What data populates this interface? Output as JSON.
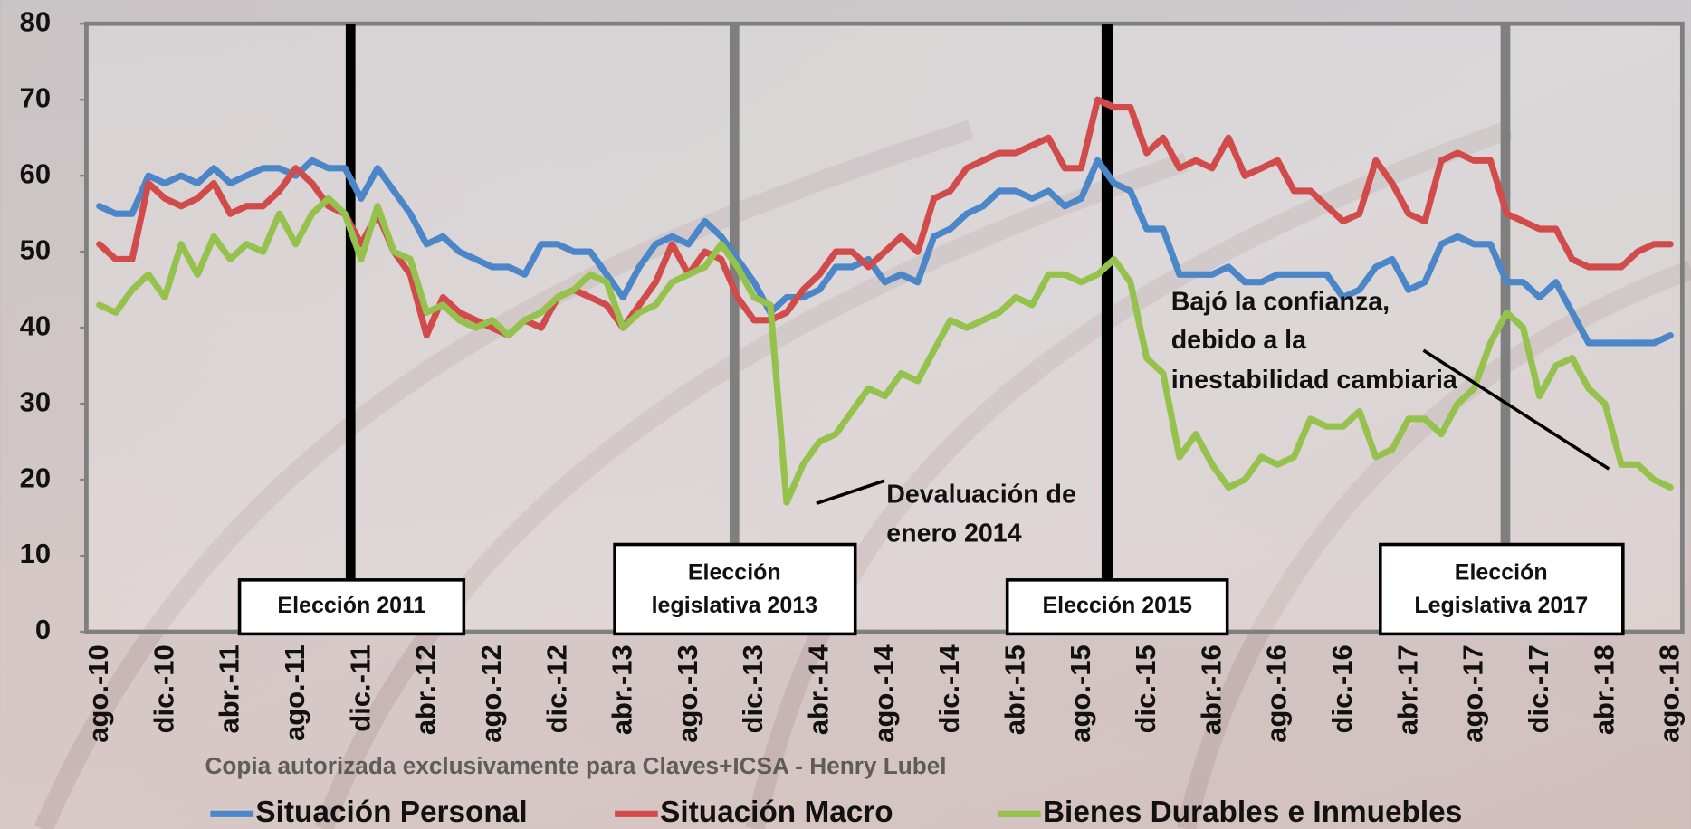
{
  "chart_data": {
    "type": "line",
    "categories": [
      "ago.-10",
      null,
      null,
      null,
      "dic.-10",
      null,
      null,
      null,
      "abr.-11",
      null,
      null,
      null,
      "ago.-11",
      null,
      null,
      null,
      "dic.-11",
      null,
      null,
      null,
      "abr.-12",
      null,
      null,
      null,
      "ago.-12",
      null,
      null,
      null,
      "dic.-12",
      null,
      null,
      null,
      "abr.-13",
      null,
      null,
      null,
      "ago.-13",
      null,
      null,
      null,
      "dic.-13",
      null,
      null,
      null,
      "abr.-14",
      null,
      null,
      null,
      "ago.-14",
      null,
      null,
      null,
      "dic.-14",
      null,
      null,
      null,
      "abr.-15",
      null,
      null,
      null,
      "ago.-15",
      null,
      null,
      null,
      "dic.-15",
      null,
      null,
      null,
      "abr.-16",
      null,
      null,
      null,
      "ago.-16",
      null,
      null,
      null,
      "dic.-16",
      null,
      null,
      null,
      "abr.-17",
      null,
      null,
      null,
      "ago.-17",
      null,
      null,
      null,
      "dic.-17",
      null,
      null,
      null,
      "abr.-18",
      null,
      null,
      null,
      "ago.-18"
    ],
    "series": [
      {
        "name": "Situación Personal",
        "color": "#4a86c8",
        "values": [
          56,
          55,
          55,
          60,
          59,
          60,
          59,
          61,
          59,
          60,
          61,
          61,
          60,
          62,
          61,
          61,
          57,
          61,
          58,
          55,
          51,
          52,
          50,
          49,
          48,
          48,
          47,
          51,
          51,
          50,
          50,
          47,
          44,
          48,
          51,
          52,
          51,
          54,
          52,
          49,
          46,
          42,
          44,
          44,
          45,
          48,
          48,
          49,
          46,
          47,
          46,
          52,
          53,
          55,
          56,
          58,
          58,
          57,
          58,
          56,
          57,
          62,
          59,
          58,
          53,
          53,
          47,
          47,
          47,
          48,
          46,
          46,
          47,
          47,
          47,
          47,
          44,
          45,
          48,
          49,
          45,
          46,
          51,
          52,
          51,
          51,
          46,
          46,
          44,
          46,
          42,
          38,
          38,
          38,
          38,
          38,
          39
        ]
      },
      {
        "name": "Situación Macro",
        "color": "#d24b4b",
        "values": [
          51,
          49,
          49,
          59,
          57,
          56,
          57,
          59,
          55,
          56,
          56,
          58,
          61,
          59,
          56,
          55,
          51,
          55,
          50,
          47,
          39,
          44,
          42,
          41,
          40,
          39,
          41,
          40,
          44,
          45,
          44,
          43,
          40,
          43,
          46,
          51,
          47,
          50,
          49,
          44,
          41,
          41,
          42,
          45,
          47,
          50,
          50,
          48,
          50,
          52,
          50,
          57,
          58,
          61,
          62,
          63,
          63,
          64,
          65,
          61,
          61,
          70,
          69,
          69,
          63,
          65,
          61,
          62,
          61,
          65,
          60,
          61,
          62,
          58,
          58,
          56,
          54,
          55,
          62,
          59,
          55,
          54,
          62,
          63,
          62,
          62,
          55,
          54,
          53,
          53,
          49,
          48,
          48,
          48,
          50,
          51,
          51
        ]
      },
      {
        "name": "Bienes Durables e Inmuebles",
        "color": "#95c24c",
        "values": [
          43,
          42,
          45,
          47,
          44,
          51,
          47,
          52,
          49,
          51,
          50,
          55,
          51,
          55,
          57,
          55,
          49,
          56,
          50,
          49,
          42,
          43,
          41,
          40,
          41,
          39,
          41,
          42,
          44,
          45,
          47,
          46,
          40,
          42,
          43,
          46,
          47,
          48,
          51,
          48,
          44,
          43,
          17,
          22,
          25,
          26,
          29,
          32,
          31,
          34,
          33,
          37,
          41,
          40,
          41,
          42,
          44,
          43,
          47,
          47,
          46,
          47,
          49,
          46,
          36,
          34,
          23,
          26,
          22,
          19,
          20,
          23,
          22,
          23,
          28,
          27,
          27,
          29,
          23,
          24,
          28,
          28,
          26,
          30,
          32,
          38,
          42,
          40,
          31,
          35,
          36,
          32,
          30,
          22,
          22,
          20,
          19
        ]
      }
    ],
    "ylim": [
      0,
      80
    ],
    "yticks": [
      0,
      10,
      20,
      30,
      40,
      50,
      60,
      70,
      80
    ],
    "grid": false,
    "legend": "bottom",
    "annotations": [
      {
        "lines": [
          "Elección 2011"
        ]
      },
      {
        "lines": [
          "Elección",
          "legislativa 2013"
        ]
      },
      {
        "lines": [
          "Elección 2015"
        ]
      },
      {
        "lines": [
          "Elección",
          "Legislativa 2017"
        ]
      },
      {
        "lines": [
          "Devaluación de",
          "enero 2014"
        ]
      },
      {
        "lines": [
          "Bajó la confianza,",
          "debido a la",
          "inestabilidad cambiaria"
        ]
      }
    ],
    "watermark": "Copia autorizada exclusivamente para Claves+ICSA - Henry Lubel"
  }
}
